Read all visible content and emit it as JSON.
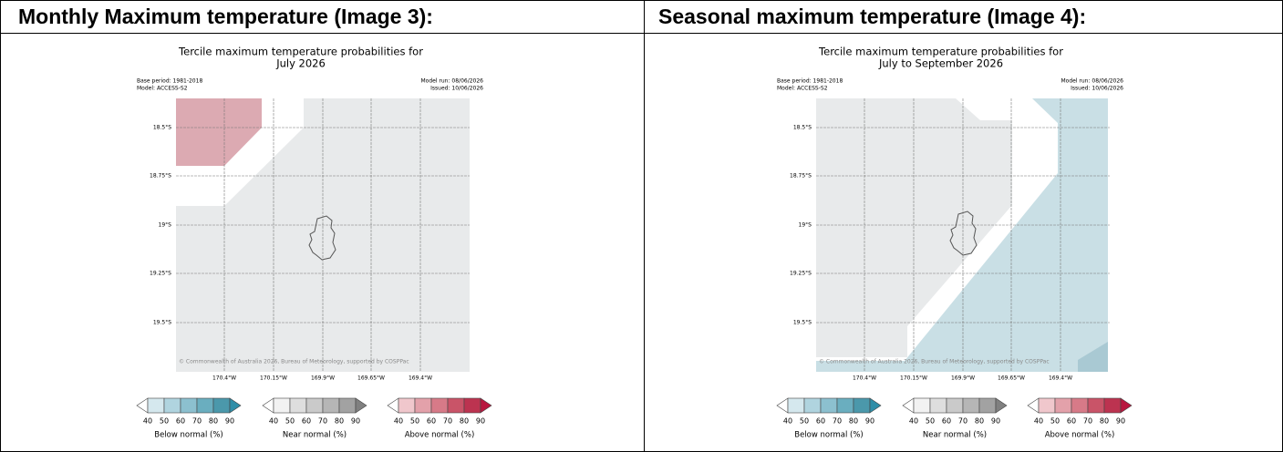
{
  "table": {
    "headers": [
      "Monthly Maximum temperature (Image 3):",
      "Seasonal maximum temperature (Image 4):"
    ]
  },
  "maps": [
    {
      "title": [
        "Tercile maximum temperature probabilities for",
        "July 2026"
      ],
      "base_period": "Base period: 1981-2018",
      "model": "Model: ACCESS-S2",
      "model_run": "Model run: 08/06/2026",
      "issued": "Issued: 10/06/2026",
      "lat_labels": [
        "18.5°S",
        "18.75°S",
        "19°S",
        "19.25°S",
        "19.5°S"
      ],
      "lon_labels": [
        "170.4°W",
        "170.15°W",
        "169.9°W",
        "169.65°W",
        "169.4°W"
      ],
      "credit": "© Commonwealth of Australia 2026, Bureau of Meteorology, supported by COSPPac",
      "legend": {
        "ticks": [
          40,
          50,
          60,
          70,
          80,
          90
        ],
        "labels": [
          "Below normal (%)",
          "Near normal (%)",
          "Above normal (%)"
        ]
      }
    },
    {
      "title": [
        "Tercile maximum temperature probabilities for",
        "July to September 2026"
      ],
      "base_period": "Base period: 1981-2018",
      "model": "Model: ACCESS-S2",
      "model_run": "Model run: 08/06/2026",
      "issued": "Issued: 10/06/2026",
      "lat_labels": [
        "18.5°S",
        "18.75°S",
        "19°S",
        "19.25°S",
        "19.5°S"
      ],
      "lon_labels": [
        "170.4°W",
        "170.15°W",
        "169.9°W",
        "169.65°W",
        "169.4°W"
      ],
      "credit": "© Commonwealth of Australia 2026, Bureau of Meteorology, supported by COSPPac",
      "legend": {
        "ticks": [
          40,
          50,
          60,
          70,
          80,
          90
        ],
        "labels": [
          "Below normal (%)",
          "Near normal (%)",
          "Above normal (%)"
        ]
      }
    }
  ]
}
